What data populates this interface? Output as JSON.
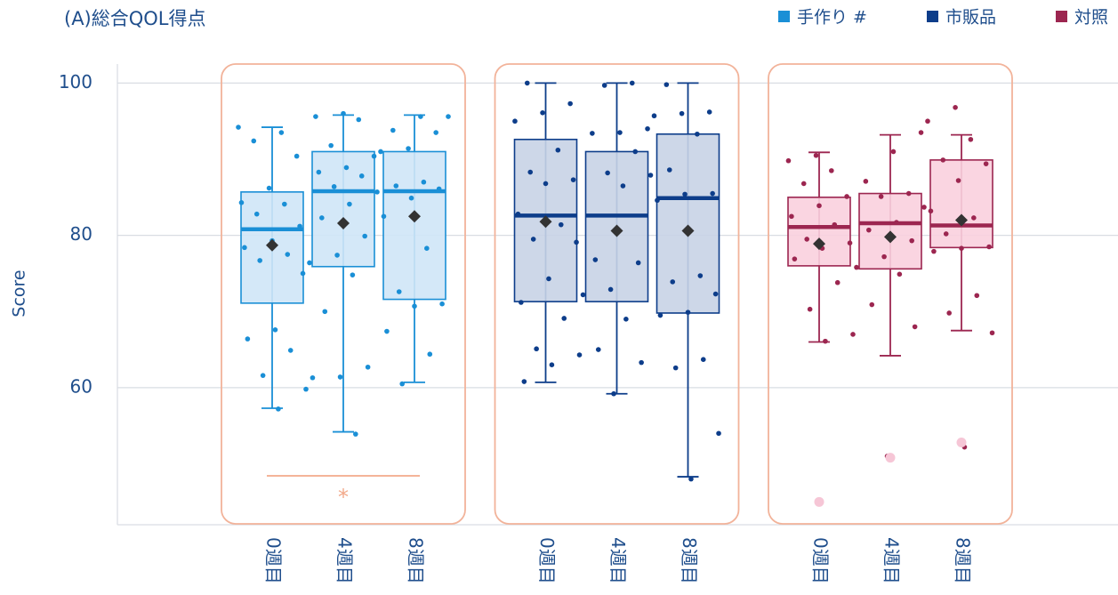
{
  "chart_data": {
    "type": "box",
    "title": "(A)総合QOL得点",
    "y_label": "Score",
    "categories": [
      "0週目",
      "4週目",
      "8週目"
    ],
    "ylim": [
      42,
      102.5
    ],
    "yticks": [
      60,
      80,
      100
    ],
    "grid": true,
    "legend": "top-right",
    "annotation": "*",
    "annotation_color": "#f2a98a",
    "panel_color": "#f2b39a",
    "mean_color": "#333333",
    "outlier_color": "#f6c6d6",
    "series": [
      {
        "name": "手作り #",
        "color": "#1a8fd6",
        "fill": "#cfe6f7",
        "boxes": [
          {
            "whisker_low": 57.3,
            "q1": 71.1,
            "median": 80.8,
            "q3": 85.7,
            "whisker_high": 94.2,
            "mean": 78.7,
            "points": [
              94.2,
              93.5,
              92.4,
              90.4,
              86.2,
              84.3,
              84.1,
              82.8,
              81.2,
              79.3,
              78.4,
              77.5,
              76.7,
              75.0,
              67.6,
              66.4,
              64.9,
              61.6,
              59.8,
              57.2
            ],
            "outliers": []
          },
          {
            "whisker_low": 54.2,
            "q1": 75.9,
            "median": 85.8,
            "q3": 91.0,
            "whisker_high": 95.8,
            "mean": 81.6,
            "points": [
              96.0,
              95.6,
              95.2,
              91.8,
              90.4,
              88.9,
              88.3,
              87.8,
              86.4,
              85.7,
              84.1,
              82.3,
              79.9,
              77.4,
              76.4,
              74.8,
              70.0,
              62.7,
              61.4,
              61.3,
              53.9
            ],
            "outliers": []
          },
          {
            "whisker_low": 60.7,
            "q1": 71.6,
            "median": 85.8,
            "q3": 91.0,
            "whisker_high": 95.8,
            "mean": 82.5,
            "points": [
              95.6,
              95.6,
              93.8,
              93.5,
              91.4,
              91.0,
              87.0,
              86.5,
              86.1,
              84.9,
              82.5,
              78.3,
              72.6,
              71.0,
              70.7,
              67.4,
              64.4,
              60.5
            ],
            "outliers": []
          }
        ]
      },
      {
        "name": "市販品",
        "color": "#0d3d8a",
        "fill": "#c8d3e6",
        "boxes": [
          {
            "whisker_low": 60.7,
            "q1": 71.3,
            "median": 82.6,
            "q3": 92.6,
            "whisker_high": 100,
            "mean": 81.8,
            "points": [
              100,
              97.3,
              96.1,
              95.0,
              91.2,
              88.3,
              87.3,
              86.8,
              82.8,
              81.4,
              79.5,
              79.1,
              74.3,
              71.2,
              69.1,
              65.1,
              64.3,
              63.0,
              60.8
            ],
            "outliers": []
          },
          {
            "whisker_low": 59.2,
            "q1": 71.3,
            "median": 82.6,
            "q3": 91.0,
            "whisker_high": 100,
            "mean": 80.6,
            "points": [
              100,
              99.7,
              94.0,
              93.5,
              93.4,
              91.0,
              88.2,
              87.9,
              86.5,
              76.8,
              76.4,
              72.9,
              72.2,
              69.0,
              65.0,
              63.3,
              59.2
            ],
            "outliers": []
          },
          {
            "whisker_low": 48.3,
            "q1": 69.8,
            "median": 84.9,
            "q3": 93.3,
            "whisker_high": 100,
            "mean": 80.6,
            "points": [
              99.8,
              96.2,
              96.0,
              95.7,
              93.3,
              88.6,
              85.5,
              85.4,
              84.6,
              74.7,
              73.9,
              72.3,
              69.9,
              69.5,
              63.7,
              62.6,
              54.0,
              48.0
            ],
            "outliers": []
          }
        ]
      },
      {
        "name": "対照",
        "color": "#9c2650",
        "fill": "#f9d0de",
        "boxes": [
          {
            "whisker_low": 66.0,
            "q1": 76.0,
            "median": 81.1,
            "q3": 85.0,
            "whisker_high": 90.9,
            "mean": 78.9,
            "points": [
              90.5,
              89.8,
              88.5,
              86.8,
              85.1,
              83.9,
              82.5,
              81.4,
              79.5,
              79.0,
              78.3,
              76.9,
              73.8,
              70.3,
              67.0,
              66.1
            ],
            "outliers": [
              45.0
            ]
          },
          {
            "whisker_low": 64.2,
            "q1": 75.6,
            "median": 81.6,
            "q3": 85.5,
            "whisker_high": 93.2,
            "mean": 79.8,
            "points": [
              93.5,
              91.0,
              87.1,
              85.5,
              85.1,
              83.7,
              81.7,
              80.7,
              79.3,
              77.2,
              75.8,
              74.9,
              70.9,
              68.0,
              51.0
            ],
            "outliers": [
              50.8
            ]
          },
          {
            "whisker_low": 67.5,
            "q1": 78.4,
            "median": 81.3,
            "q3": 89.9,
            "whisker_high": 93.2,
            "mean": 82.0,
            "points": [
              96.8,
              95.0,
              92.6,
              89.9,
              89.4,
              87.2,
              83.2,
              82.3,
              80.2,
              78.5,
              78.3,
              77.9,
              72.1,
              69.8,
              67.2,
              52.2
            ],
            "outliers": [
              52.8
            ]
          }
        ]
      }
    ]
  }
}
